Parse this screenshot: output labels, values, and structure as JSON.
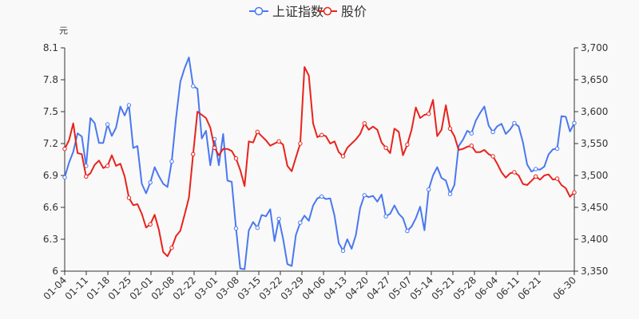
{
  "legend": {
    "items": [
      {
        "label": "上证指数",
        "color": "#4a78f0",
        "marker": "open-circle-line"
      },
      {
        "label": "股价",
        "color": "#e8231c",
        "marker": "open-circle-line"
      }
    ]
  },
  "axes": {
    "left_unit": "元",
    "left_ticks": [
      "8.1",
      "7.8",
      "7.5",
      "7.2",
      "6.9",
      "6.6",
      "6.3",
      "6"
    ],
    "right_ticks": [
      "3,700",
      "3,650",
      "3,600",
      "3,550",
      "3,500",
      "3,450",
      "3,400",
      "3,350"
    ],
    "x_ticks": [
      "01-04",
      "01-11",
      "01-18",
      "01-25",
      "02-01",
      "02-08",
      "02-22",
      "03-01",
      "03-08",
      "03-15",
      "03-22",
      "03-29",
      "04-06",
      "04-13",
      "04-20",
      "04-27",
      "05-07",
      "05-14",
      "05-21",
      "05-28",
      "06-04",
      "06-11",
      "06-21",
      "06-30"
    ]
  },
  "chart_data": {
    "type": "line",
    "title": "",
    "legend_position": "top",
    "grid": false,
    "xlabel": "",
    "x_tick_labels": [
      "01-04",
      "01-11",
      "01-18",
      "01-25",
      "02-01",
      "02-08",
      "02-22",
      "03-01",
      "03-08",
      "03-15",
      "03-22",
      "03-29",
      "04-06",
      "04-13",
      "04-20",
      "04-27",
      "05-07",
      "05-14",
      "05-21",
      "05-28",
      "06-04",
      "06-11",
      "06-21",
      "06-30"
    ],
    "y_left": {
      "label": "元",
      "range": [
        6.0,
        8.1
      ],
      "ticks": [
        6.0,
        6.3,
        6.6,
        6.9,
        7.2,
        7.5,
        7.8,
        8.1
      ]
    },
    "y_right": {
      "label": "",
      "range": [
        3350,
        3700
      ],
      "ticks": [
        3350,
        3400,
        3450,
        3500,
        3550,
        3600,
        3650,
        3700
      ]
    },
    "series": [
      {
        "name": "上证指数",
        "axis": "right",
        "color": "#4a78f0",
        "values": [
          3497,
          3520,
          3537,
          3566,
          3561,
          3515,
          3590,
          3582,
          3551,
          3551,
          3580,
          3562,
          3575,
          3608,
          3594,
          3610,
          3543,
          3546,
          3487,
          3472,
          3489,
          3513,
          3499,
          3487,
          3482,
          3522,
          3590,
          3647,
          3668,
          3685,
          3640,
          3636,
          3558,
          3570,
          3516,
          3557,
          3516,
          3565,
          3492,
          3490,
          3417,
          3354,
          3353,
          3414,
          3427,
          3418,
          3438,
          3436,
          3447,
          3397,
          3432,
          3401,
          3361,
          3358,
          3407,
          3426,
          3437,
          3429,
          3453,
          3464,
          3467,
          3463,
          3464,
          3437,
          3394,
          3382,
          3400,
          3385,
          3407,
          3449,
          3469,
          3466,
          3468,
          3459,
          3470,
          3436,
          3440,
          3453,
          3440,
          3433,
          3413,
          3420,
          3433,
          3451,
          3414,
          3478,
          3500,
          3513,
          3496,
          3492,
          3471,
          3485,
          3546,
          3556,
          3570,
          3566,
          3586,
          3598,
          3608,
          3578,
          3568,
          3577,
          3581,
          3565,
          3572,
          3582,
          3577,
          3552,
          3517,
          3506,
          3510,
          3509,
          3514,
          3533,
          3541,
          3542,
          3593,
          3592,
          3569,
          3582
        ]
      },
      {
        "name": "股价",
        "axis": "left",
        "color": "#e8231c",
        "values": [
          7.15,
          7.23,
          7.39,
          7.11,
          7.1,
          6.89,
          6.92,
          7.0,
          7.04,
          6.97,
          6.99,
          7.09,
          6.99,
          7.01,
          6.89,
          6.69,
          6.62,
          6.63,
          6.54,
          6.41,
          6.44,
          6.53,
          6.39,
          6.18,
          6.14,
          6.22,
          6.33,
          6.38,
          6.53,
          6.69,
          7.1,
          7.5,
          7.47,
          7.44,
          7.35,
          7.16,
          7.09,
          7.15,
          7.15,
          7.13,
          7.06,
          6.95,
          6.8,
          7.22,
          7.21,
          7.31,
          7.27,
          7.23,
          7.18,
          7.2,
          7.22,
          7.19,
          6.99,
          6.94,
          7.07,
          7.2,
          7.92,
          7.84,
          7.39,
          7.26,
          7.28,
          7.27,
          7.2,
          7.22,
          7.12,
          7.08,
          7.16,
          7.2,
          7.24,
          7.29,
          7.39,
          7.33,
          7.36,
          7.33,
          7.21,
          7.16,
          7.11,
          7.34,
          7.31,
          7.09,
          7.19,
          7.33,
          7.54,
          7.44,
          7.47,
          7.48,
          7.61,
          7.27,
          7.33,
          7.56,
          7.34,
          7.27,
          7.14,
          7.15,
          7.17,
          7.18,
          7.12,
          7.12,
          7.14,
          7.1,
          7.08,
          7.01,
          6.93,
          6.88,
          6.92,
          6.93,
          6.9,
          6.82,
          6.81,
          6.85,
          6.89,
          6.86,
          6.9,
          6.91,
          6.86,
          6.87,
          6.81,
          6.78,
          6.7,
          6.74
        ]
      }
    ]
  }
}
